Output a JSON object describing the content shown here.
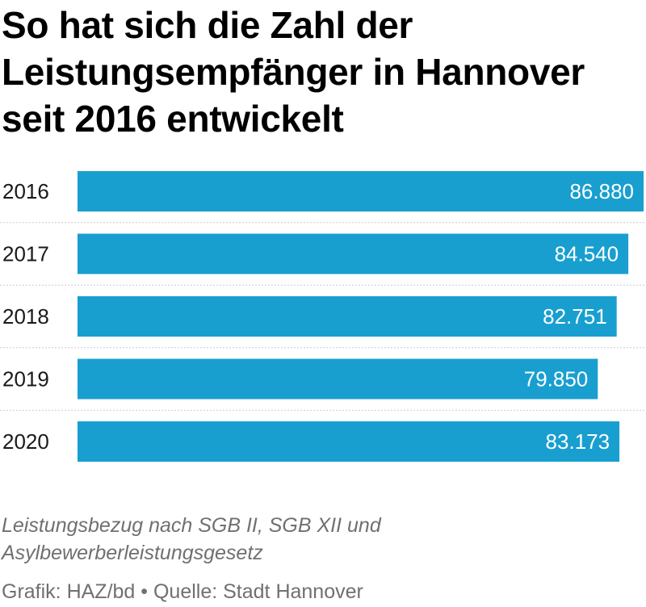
{
  "colors": {
    "bar": "#189fd0",
    "bar_label": "#ffffff",
    "category_label": "#1a1a1a",
    "separator": "#cccccc",
    "caption": "#707070"
  },
  "chart_data": {
    "type": "bar",
    "orientation": "horizontal",
    "title": "So hat sich die Zahl der Leistungsempfänger in Hannover seit 2016 entwickelt",
    "categories": [
      "2016",
      "2017",
      "2018",
      "2019",
      "2020"
    ],
    "values": [
      86880,
      84540,
      82751,
      79850,
      83173
    ],
    "value_labels": [
      "86.880",
      "84.540",
      "82.751",
      "79.850",
      "83.173"
    ],
    "xlim": [
      0,
      86880
    ],
    "grid": false,
    "legend": "none"
  },
  "notes": {
    "caption": "Leistungsbezug nach SGB II, SGB XII und Asylbewerberleistungsgesetz",
    "source": "Grafik: HAZ/bd • Quelle: Stadt Hannover"
  }
}
